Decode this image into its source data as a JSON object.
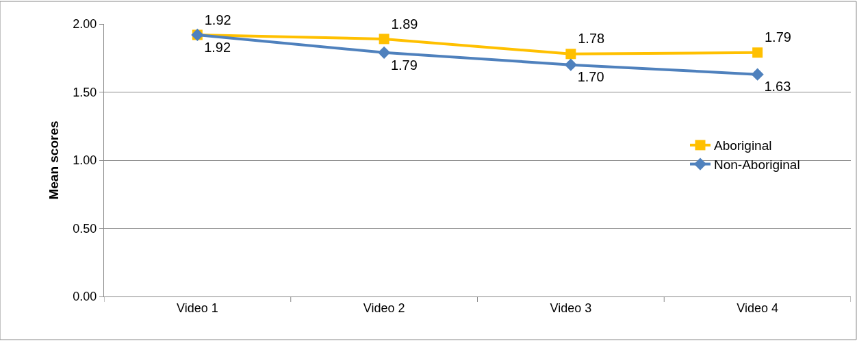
{
  "chart_data": {
    "type": "line",
    "ylabel": "Mean scores",
    "categories": [
      "Video 1",
      "Video 2",
      "Video 3",
      "Video 4"
    ],
    "series": [
      {
        "name": "Aboriginal",
        "color": "#ffc000",
        "marker": "square",
        "values": [
          1.92,
          1.89,
          1.78,
          1.79
        ],
        "value_labels": [
          "1.92",
          "1.89",
          "1.78",
          "1.79"
        ]
      },
      {
        "name": "Non-Aboriginal",
        "color": "#4f81bd",
        "marker": "diamond",
        "values": [
          1.92,
          1.79,
          1.7,
          1.63
        ],
        "value_labels": [
          "1.92",
          "1.79",
          "1.70",
          "1.63"
        ]
      }
    ],
    "ylim": [
      0,
      2
    ],
    "yticks": [
      {
        "value": 0,
        "label": "0.00"
      },
      {
        "value": 0.5,
        "label": "0.50"
      },
      {
        "value": 1,
        "label": "1.00"
      },
      {
        "value": 1.5,
        "label": "1.50"
      },
      {
        "value": 2,
        "label": "2.00"
      }
    ],
    "grid": "y",
    "legend": "right",
    "line_style": "solid"
  }
}
